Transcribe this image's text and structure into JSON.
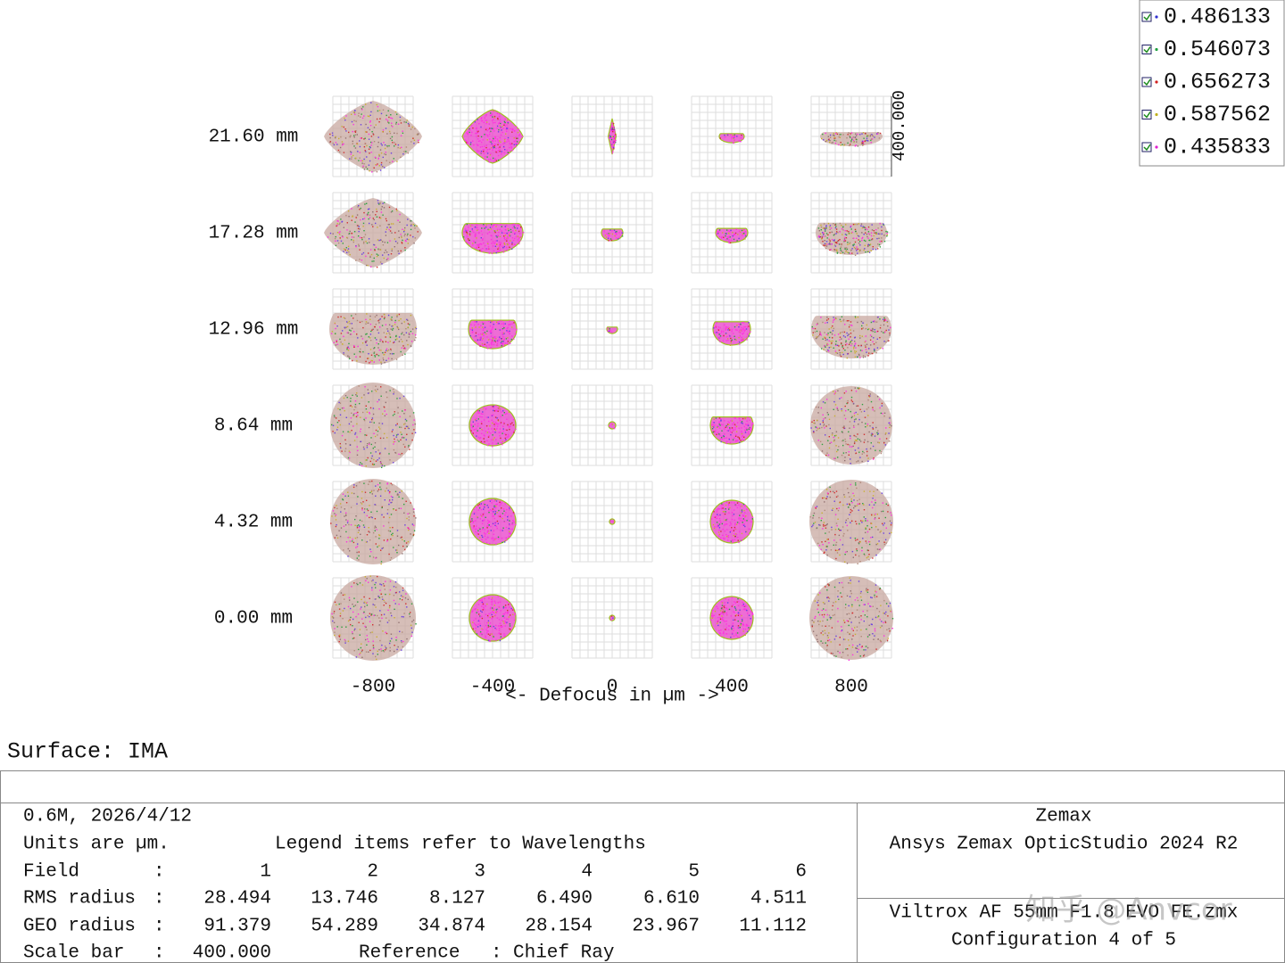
{
  "legend": {
    "items": [
      "0.486133",
      "0.546073",
      "0.656273",
      "0.587562",
      "0.435833"
    ]
  },
  "plot": {
    "field_labels": [
      "21.60 mm",
      "17.28 mm",
      "12.96 mm",
      "8.64 mm",
      "4.32 mm",
      "0.00 mm"
    ],
    "defocus_labels": [
      "-800",
      "-400",
      "0",
      "400",
      "800"
    ],
    "axis_label": "<- Defocus in µm ->",
    "scale_label": "400.000"
  },
  "surface": "Surface: IMA",
  "footer": {
    "left": {
      "date": "0.6M, 2026/4/12",
      "units": "Units are µm.",
      "legend_note": "Legend items refer to Wavelengths",
      "table": {
        "rows": [
          [
            "Field",
            ":",
            "1",
            "2",
            "3",
            "4",
            "5",
            "6"
          ],
          [
            "RMS radius",
            ":",
            "28.494",
            "13.746",
            "8.127",
            "6.490",
            "6.610",
            "4.511"
          ],
          [
            "GEO radius",
            ":",
            "91.379",
            "54.289",
            "34.874",
            "28.154",
            "23.967",
            "11.112"
          ]
        ]
      },
      "scale": [
        "Scale bar",
        ":",
        "400.000"
      ],
      "reference": [
        "Reference",
        ":",
        "Chief Ray"
      ]
    },
    "right": {
      "title": "Zemax",
      "product": "Ansys Zemax OpticStudio 2024 R2",
      "file": "Viltrox AF 55mm F1.8 EVO FE.zmx",
      "config": "Configuration 4 of 5"
    }
  },
  "watermark": "知乎 @Anvcor"
}
